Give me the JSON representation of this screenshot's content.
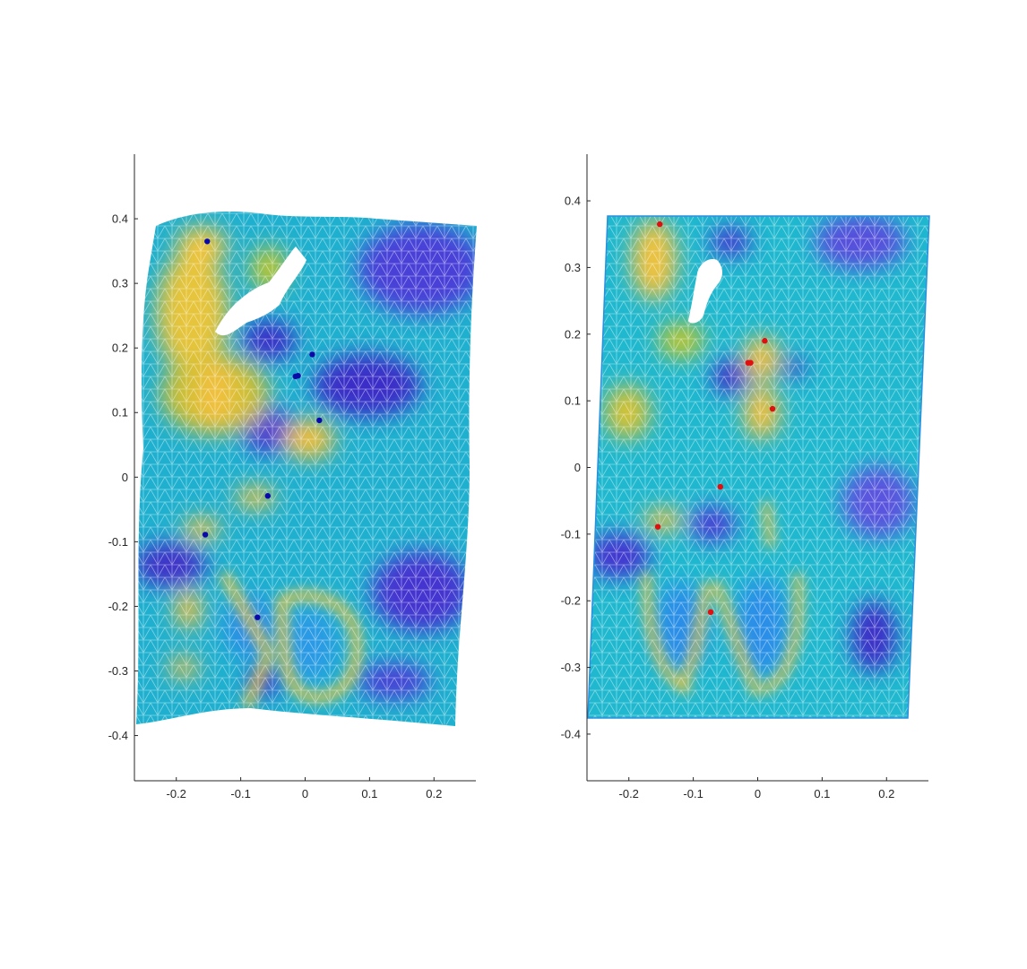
{
  "chart_data": [
    {
      "type": "scatter",
      "title": "",
      "xlabel": "",
      "ylabel": "",
      "xlim": [
        -0.265,
        0.265
      ],
      "ylim": [
        -0.47,
        0.5
      ],
      "x_ticks": [
        -0.2,
        -0.1,
        0,
        0.1,
        0.2
      ],
      "x_tick_labels": [
        "-0.2",
        "-0.1",
        "0",
        "0.1",
        "0.2"
      ],
      "y_ticks": [
        -0.4,
        -0.3,
        -0.2,
        -0.1,
        0,
        0.1,
        0.2,
        0.3,
        0.4
      ],
      "y_tick_labels": [
        "-0.4",
        "-0.3",
        "-0.2",
        "-0.1",
        "0",
        "0.1",
        "0.2",
        "0.3",
        "0.4"
      ],
      "grid": false,
      "background": "deformed triangular mesh colored by strain (parula colormap)",
      "point_color": "#0a0aa8",
      "points": [
        {
          "x": -0.152,
          "y": 0.365
        },
        {
          "x": 0.011,
          "y": 0.19
        },
        {
          "x": -0.015,
          "y": 0.156
        },
        {
          "x": -0.011,
          "y": 0.157
        },
        {
          "x": 0.022,
          "y": 0.088
        },
        {
          "x": -0.058,
          "y": -0.029
        },
        {
          "x": -0.155,
          "y": -0.089
        },
        {
          "x": -0.074,
          "y": -0.217
        }
      ]
    },
    {
      "type": "scatter",
      "title": "",
      "xlabel": "",
      "ylabel": "",
      "xlim": [
        -0.265,
        0.265
      ],
      "ylim": [
        -0.47,
        0.47
      ],
      "x_ticks": [
        -0.2,
        -0.1,
        0,
        0.1,
        0.2
      ],
      "x_tick_labels": [
        "-0.2",
        "-0.1",
        "0",
        "0.1",
        "0.2"
      ],
      "y_ticks": [
        -0.4,
        -0.3,
        -0.2,
        -0.1,
        0,
        0.1,
        0.2,
        0.3,
        0.4
      ],
      "y_tick_labels": [
        "-0.4",
        "-0.3",
        "-0.2",
        "-0.1",
        "0",
        "0.1",
        "0.2",
        "0.3",
        "0.4"
      ],
      "grid": false,
      "background": "reference triangular mesh colored by strain (parula colormap)",
      "point_color": "#e01010",
      "points": [
        {
          "x": -0.152,
          "y": 0.365
        },
        {
          "x": 0.011,
          "y": 0.19
        },
        {
          "x": -0.015,
          "y": 0.157
        },
        {
          "x": -0.011,
          "y": 0.157
        },
        {
          "x": 0.023,
          "y": 0.088
        },
        {
          "x": -0.058,
          "y": -0.029
        },
        {
          "x": -0.155,
          "y": -0.089
        },
        {
          "x": -0.073,
          "y": -0.217
        }
      ]
    }
  ]
}
